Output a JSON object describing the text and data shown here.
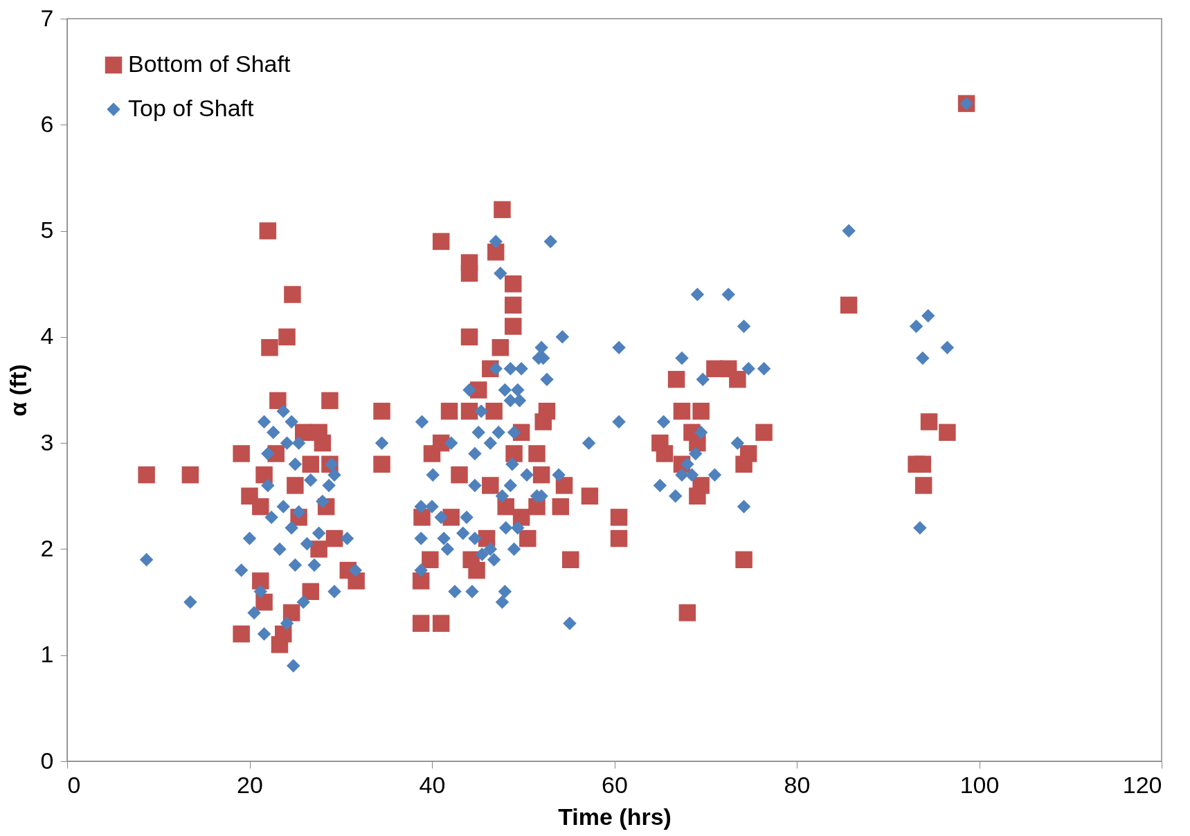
{
  "chart_data": {
    "type": "scatter",
    "xlabel": "Time (hrs)",
    "ylabel": "α (ft)",
    "xlim": [
      0,
      120
    ],
    "ylim": [
      0,
      7
    ],
    "xticks": [
      0,
      20,
      40,
      60,
      80,
      100,
      120
    ],
    "yticks": [
      0,
      1,
      2,
      3,
      4,
      5,
      6,
      7
    ],
    "grid": false,
    "legend": "top left",
    "series": [
      {
        "name": "Bottom of Shaft",
        "color": "#c0504d",
        "marker": "square",
        "x": [
          8.7,
          13.5,
          19.1,
          19.1,
          20.0,
          22.0,
          22.2,
          24.1,
          24.7,
          23.1,
          28.8,
          34.5,
          34.5,
          23.3,
          23.7,
          24.6,
          26.7,
          30.8,
          31.7,
          29.3,
          28.0,
          27.6,
          25.9,
          21.6,
          21.2,
          21.2,
          21.6,
          25.0,
          28.4,
          22.9,
          26.7,
          28.8,
          27.6,
          25.4,
          41.0,
          44.1,
          44.1,
          44.1,
          47.0,
          47.7,
          48.9,
          48.9,
          48.9,
          47.5,
          46.4,
          45.1,
          46.8,
          41.9,
          44.1,
          38.8,
          41.0,
          38.8,
          39.8,
          38.9,
          40.0,
          41.0,
          43.0,
          44.3,
          44.9,
          46.0,
          49.0,
          49.8,
          49.8,
          50.5,
          51.5,
          52.0,
          52.2,
          52.6,
          54.1,
          54.5,
          55.2,
          57.3,
          60.5,
          60.5,
          42.1,
          46.4,
          48.1,
          51.5,
          65.0,
          65.5,
          66.8,
          67.4,
          69.5,
          67.4,
          68.5,
          69.1,
          69.1,
          69.5,
          68.0,
          71.0,
          72.5,
          73.5,
          74.2,
          74.7,
          74.2,
          76.4,
          85.7,
          93.1,
          93.8,
          93.9,
          94.5,
          96.5,
          98.6
        ],
        "values": [
          2.7,
          2.7,
          2.9,
          1.2,
          2.5,
          5.0,
          3.9,
          4.0,
          4.4,
          3.4,
          3.4,
          3.3,
          2.8,
          1.1,
          1.2,
          1.4,
          1.6,
          1.8,
          1.7,
          2.1,
          3.0,
          3.1,
          3.1,
          2.7,
          2.4,
          1.7,
          1.5,
          2.6,
          2.4,
          2.9,
          2.8,
          2.8,
          2.0,
          2.3,
          4.9,
          4.7,
          4.6,
          4.0,
          4.8,
          5.2,
          4.5,
          4.3,
          4.1,
          3.9,
          3.7,
          3.5,
          3.3,
          3.3,
          3.3,
          1.3,
          1.3,
          1.7,
          1.9,
          2.3,
          2.9,
          3.0,
          2.7,
          1.9,
          1.8,
          2.1,
          2.9,
          3.1,
          2.3,
          2.1,
          2.9,
          2.7,
          3.2,
          3.3,
          2.4,
          2.6,
          1.9,
          2.5,
          2.3,
          2.1,
          2.3,
          2.6,
          2.4,
          2.4,
          3.0,
          2.9,
          3.6,
          3.3,
          3.3,
          2.8,
          3.1,
          3.0,
          2.5,
          2.6,
          1.4,
          3.7,
          3.7,
          3.6,
          2.8,
          2.9,
          1.9,
          3.1,
          4.3,
          2.8,
          2.8,
          2.6,
          3.2,
          3.1,
          6.2
        ]
      },
      {
        "name": "Top of Shaft",
        "color": "#4f81bd",
        "marker": "diamond",
        "x": [
          8.7,
          13.5,
          19.1,
          20.0,
          20.5,
          21.6,
          21.2,
          21.6,
          22.6,
          22.0,
          23.7,
          24.6,
          24.1,
          25.0,
          25.4,
          24.1,
          24.8,
          25.9,
          22.0,
          22.4,
          23.3,
          23.7,
          24.6,
          25.0,
          25.4,
          26.3,
          26.7,
          27.1,
          27.6,
          28.0,
          28.7,
          29.0,
          29.3,
          29.3,
          30.7,
          31.6,
          34.5,
          38.9,
          38.8,
          38.8,
          38.8,
          40.1,
          40.0,
          41.0,
          41.3,
          41.7,
          42.1,
          42.5,
          44.4,
          44.1,
          45.1,
          45.4,
          44.7,
          44.7,
          43.8,
          43.4,
          44.7,
          45.5,
          46.4,
          46.8,
          47.0,
          47.5,
          47.0,
          48.6,
          49.8,
          48.0,
          49.4,
          48.6,
          49.6,
          49.0,
          46.4,
          47.3,
          48.8,
          47.7,
          48.6,
          48.0,
          47.7,
          49.0,
          49.4,
          48.1,
          50.4,
          51.5,
          52.0,
          52.0,
          51.7,
          52.2,
          52.6,
          53.0,
          54.3,
          53.9,
          55.1,
          57.2,
          60.5,
          60.5,
          65.0,
          65.4,
          66.7,
          67.4,
          67.4,
          68.0,
          68.5,
          68.9,
          69.5,
          69.7,
          69.1,
          71.0,
          72.5,
          74.2,
          74.7,
          76.4,
          73.5,
          74.2,
          85.7,
          93.1,
          94.4,
          93.8,
          96.5,
          93.5,
          98.6
        ],
        "values": [
          1.9,
          1.5,
          1.8,
          2.1,
          1.4,
          1.2,
          1.6,
          3.2,
          3.1,
          2.9,
          3.3,
          3.2,
          3.0,
          2.8,
          3.0,
          1.3,
          0.9,
          1.5,
          2.6,
          2.3,
          2.0,
          2.4,
          2.2,
          1.85,
          2.35,
          2.05,
          2.65,
          1.85,
          2.15,
          2.45,
          2.6,
          2.8,
          2.7,
          1.6,
          2.1,
          1.8,
          3.0,
          3.2,
          2.4,
          2.1,
          1.8,
          2.7,
          2.4,
          2.3,
          2.1,
          2.0,
          3.0,
          1.6,
          1.6,
          3.5,
          3.1,
          3.3,
          2.9,
          2.6,
          2.3,
          2.15,
          2.1,
          1.95,
          2.0,
          1.9,
          4.9,
          4.6,
          3.7,
          3.7,
          3.7,
          3.5,
          3.5,
          3.4,
          3.4,
          3.1,
          3.0,
          3.1,
          2.8,
          2.5,
          2.6,
          1.6,
          1.5,
          2.0,
          2.2,
          2.2,
          2.7,
          2.5,
          2.5,
          3.9,
          3.8,
          3.8,
          3.6,
          4.9,
          4.0,
          2.7,
          1.3,
          3.0,
          3.9,
          3.2,
          2.6,
          3.2,
          2.5,
          3.8,
          2.7,
          2.8,
          2.7,
          2.9,
          3.1,
          3.6,
          4.4,
          2.7,
          4.4,
          4.1,
          3.7,
          3.7,
          3.0,
          2.4,
          5.0,
          4.1,
          4.2,
          3.8,
          3.9,
          2.2,
          6.2
        ]
      }
    ]
  }
}
